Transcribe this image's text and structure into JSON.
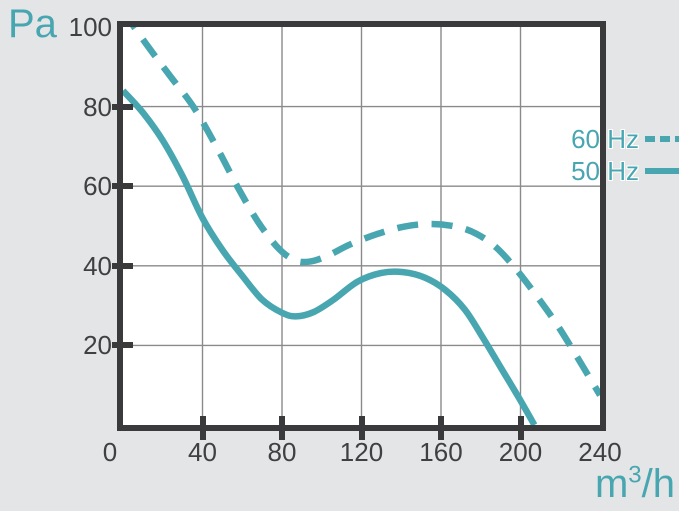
{
  "colors": {
    "accent": "#48a6b1",
    "axis": "#3a3a3c",
    "grid": "#8a8a8a",
    "tick_label": "#3f4043",
    "plot_bg": "#ffffff",
    "page_bg": "#e4e5e6"
  },
  "y_axis": {
    "unit_label": "Pa",
    "tick_labels": [
      "100",
      "80",
      "60",
      "40",
      "20"
    ],
    "tick_values": [
      100,
      80,
      60,
      40,
      20
    ],
    "min": 0,
    "max": 100
  },
  "x_axis": {
    "unit_prefix": "m",
    "unit_sup": "3",
    "unit_suffix": "/h",
    "tick_labels": [
      "0",
      "40",
      "80",
      "120",
      "160",
      "200",
      "240"
    ],
    "tick_values": [
      0,
      40,
      80,
      120,
      160,
      200,
      240
    ],
    "min": 0,
    "max": 240
  },
  "legend": {
    "items": [
      {
        "label": "60 Hz",
        "style": "dashed"
      },
      {
        "label": "50 Hz",
        "style": "solid"
      }
    ]
  },
  "chart_data": {
    "type": "line",
    "xlabel": "m3/h",
    "ylabel": "Pa",
    "xlim": [
      0,
      240
    ],
    "ylim": [
      0,
      100
    ],
    "x_ticks": [
      0,
      40,
      80,
      120,
      160,
      200,
      240
    ],
    "y_ticks": [
      20,
      40,
      60,
      80,
      100
    ],
    "grid": true,
    "legend_position": "upper-right",
    "series": [
      {
        "name": "60 Hz",
        "line_style": "dashed",
        "color": "#48a6b1",
        "points": [
          [
            0,
            104
          ],
          [
            12,
            95.5
          ],
          [
            24,
            87.5
          ],
          [
            36,
            79.5
          ],
          [
            48,
            69
          ],
          [
            58,
            59.5
          ],
          [
            68,
            51
          ],
          [
            78,
            44.5
          ],
          [
            86,
            41.5
          ],
          [
            93,
            41
          ],
          [
            102,
            42.3
          ],
          [
            114,
            45.3
          ],
          [
            128,
            48
          ],
          [
            142,
            49.9
          ],
          [
            155,
            50.5
          ],
          [
            168,
            49.8
          ],
          [
            178,
            48
          ],
          [
            188,
            44.5
          ],
          [
            198,
            39
          ],
          [
            208,
            32.5
          ],
          [
            218,
            25.5
          ],
          [
            228,
            17.5
          ],
          [
            240,
            7.5
          ]
        ]
      },
      {
        "name": "50 Hz",
        "line_style": "solid",
        "color": "#48a6b1",
        "points": [
          [
            0,
            84
          ],
          [
            10,
            78.5
          ],
          [
            20,
            71.5
          ],
          [
            30,
            62.5
          ],
          [
            40,
            52
          ],
          [
            50,
            44
          ],
          [
            60,
            37.5
          ],
          [
            70,
            31.5
          ],
          [
            80,
            28.2
          ],
          [
            87,
            27.3
          ],
          [
            96,
            28.4
          ],
          [
            106,
            31.5
          ],
          [
            118,
            36
          ],
          [
            130,
            38.2
          ],
          [
            141,
            38.4
          ],
          [
            152,
            37
          ],
          [
            162,
            34
          ],
          [
            172,
            29
          ],
          [
            181,
            22
          ],
          [
            190,
            14.5
          ],
          [
            199,
            7
          ],
          [
            207,
            0
          ]
        ]
      }
    ]
  }
}
